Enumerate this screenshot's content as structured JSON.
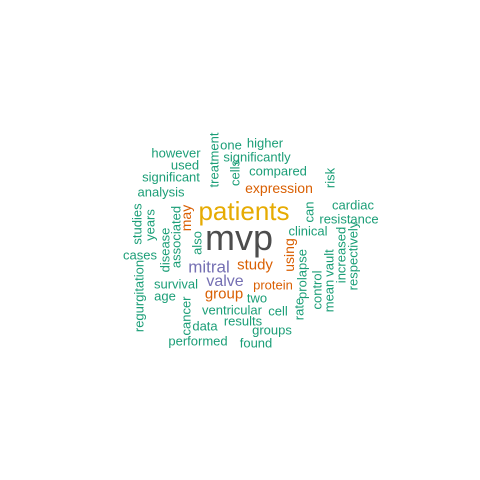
{
  "palette": {
    "teal": "#1b9e77",
    "orange": "#d95f02",
    "purple": "#7570b3",
    "gold": "#e6ab02",
    "gray": "#4d4d4d"
  },
  "words": [
    {
      "text": "mvp",
      "color": "gray"
    },
    {
      "text": "patients",
      "color": "gold"
    },
    {
      "text": "mitral",
      "color": "purple"
    },
    {
      "text": "valve",
      "color": "purple"
    },
    {
      "text": "study",
      "color": "orange"
    },
    {
      "text": "group",
      "color": "orange"
    },
    {
      "text": "expression",
      "color": "orange"
    },
    {
      "text": "protein",
      "color": "orange"
    },
    {
      "text": "may",
      "color": "orange"
    },
    {
      "text": "using",
      "color": "orange"
    },
    {
      "text": "one",
      "color": "teal"
    },
    {
      "text": "higher",
      "color": "teal"
    },
    {
      "text": "however",
      "color": "teal"
    },
    {
      "text": "treatment",
      "color": "teal"
    },
    {
      "text": "used",
      "color": "teal"
    },
    {
      "text": "significantly",
      "color": "teal"
    },
    {
      "text": "significant",
      "color": "teal"
    },
    {
      "text": "compared",
      "color": "teal"
    },
    {
      "text": "cells",
      "color": "teal"
    },
    {
      "text": "risk",
      "color": "teal"
    },
    {
      "text": "analysis",
      "color": "teal"
    },
    {
      "text": "cardiac",
      "color": "teal"
    },
    {
      "text": "can",
      "color": "teal"
    },
    {
      "text": "resistance",
      "color": "teal"
    },
    {
      "text": "studies",
      "color": "teal"
    },
    {
      "text": "years",
      "color": "teal"
    },
    {
      "text": "associated",
      "color": "teal"
    },
    {
      "text": "clinical",
      "color": "teal"
    },
    {
      "text": "disease",
      "color": "teal"
    },
    {
      "text": "also",
      "color": "teal"
    },
    {
      "text": "cases",
      "color": "teal"
    },
    {
      "text": "increased",
      "color": "teal"
    },
    {
      "text": "respectively",
      "color": "teal"
    },
    {
      "text": "prolapse",
      "color": "teal"
    },
    {
      "text": "vault",
      "color": "teal"
    },
    {
      "text": "survival",
      "color": "teal"
    },
    {
      "text": "age",
      "color": "teal"
    },
    {
      "text": "regurgitation",
      "color": "teal"
    },
    {
      "text": "two",
      "color": "teal"
    },
    {
      "text": "control",
      "color": "teal"
    },
    {
      "text": "mean",
      "color": "teal"
    },
    {
      "text": "cancer",
      "color": "teal"
    },
    {
      "text": "ventricular",
      "color": "teal"
    },
    {
      "text": "cell",
      "color": "teal"
    },
    {
      "text": "rate",
      "color": "teal"
    },
    {
      "text": "data",
      "color": "teal"
    },
    {
      "text": "results",
      "color": "teal"
    },
    {
      "text": "groups",
      "color": "teal"
    },
    {
      "text": "performed",
      "color": "teal"
    },
    {
      "text": "found",
      "color": "teal"
    }
  ]
}
